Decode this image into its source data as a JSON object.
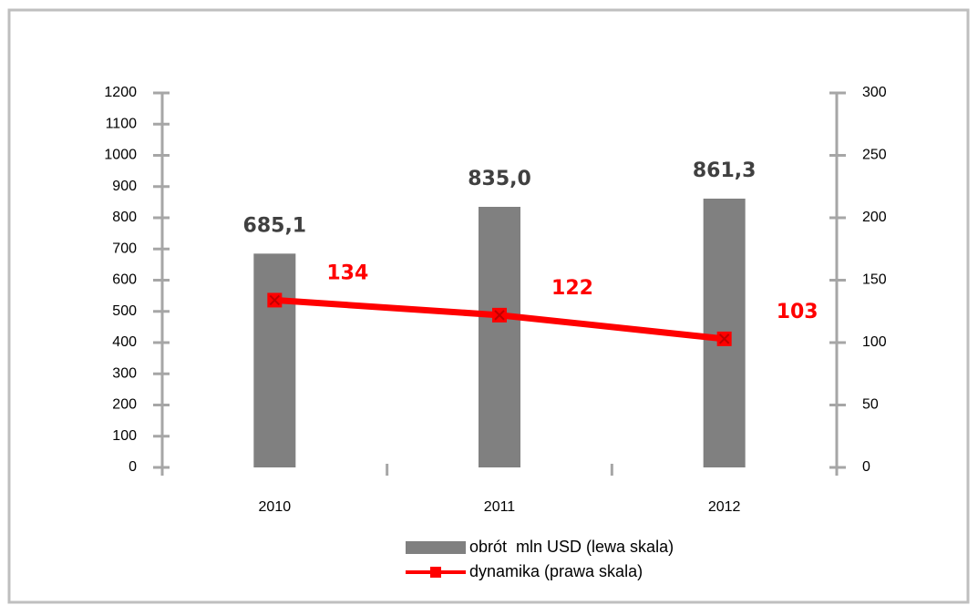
{
  "chart_data": {
    "type": "combo",
    "categories": [
      "2010",
      "2011",
      "2012"
    ],
    "series": [
      {
        "name": "obrót  mln USD (lewa skala)",
        "type": "bar",
        "color": "#808080",
        "values": [
          685.1,
          835.0,
          861.3
        ],
        "value_labels": [
          "685,1",
          "835,0",
          "861,3"
        ]
      },
      {
        "name": "dynamika (prawa skala)",
        "type": "line",
        "axis": "y2",
        "color": "#ff0000",
        "values": [
          134,
          122,
          103
        ]
      }
    ],
    "ylim": [
      0,
      1200
    ],
    "yticks": [
      0,
      100,
      200,
      300,
      400,
      500,
      600,
      700,
      800,
      900,
      1000,
      1100,
      1200
    ],
    "y2lim": [
      0,
      300
    ],
    "y2ticks": [
      0,
      50,
      100,
      150,
      200,
      250,
      300
    ],
    "legend": "bottom"
  }
}
